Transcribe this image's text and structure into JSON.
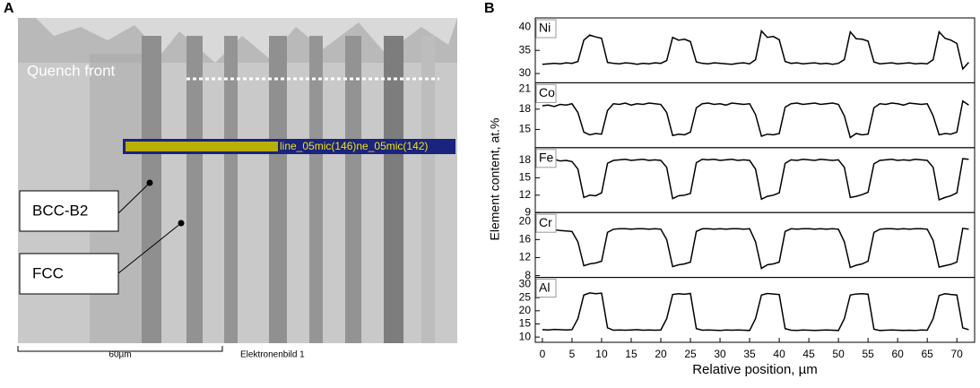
{
  "figure": {
    "panel_a_label": "A",
    "panel_b_label": "B",
    "ylabel": "Element content, at.%"
  },
  "micrograph": {
    "quench_front": "Quench front",
    "line_label": "line_05mic(146)ne_05mic(142)",
    "phase_1": "BCC-B2",
    "phase_2": "FCC",
    "scale_bar": "60µm",
    "image_label": "Elektronenbild  1"
  },
  "chart_data": [
    {
      "type": "line",
      "series": [
        {
          "name": "Ni",
          "color": "#000000",
          "values": [
            32,
            32.1,
            32.2,
            32.1,
            32.3,
            32.2,
            32.6,
            37.2,
            38.3,
            37.9,
            37.6,
            32.4,
            32.2,
            32.1,
            32.3,
            32.2,
            32.0,
            32.2,
            32.1,
            32.3,
            32.2,
            32.8,
            37.8,
            37.2,
            37.4,
            36.9,
            32.5,
            32.2,
            32.1,
            32.3,
            32.2,
            32.1,
            32.0,
            32.2,
            32.3,
            32.1,
            33,
            39.2,
            37.8,
            38.0,
            37.3,
            32.6,
            32.2,
            32.3,
            32.1,
            32.2,
            32.3,
            32.1,
            32.2,
            32.0,
            32.2,
            33,
            39,
            37.5,
            37.4,
            37,
            32.5,
            32.1,
            32.2,
            32.3,
            32.1,
            32.2,
            32.3,
            32.1,
            32.2,
            32.1,
            33,
            39,
            37.6,
            37.2,
            36.5,
            31,
            32.4
          ]
        }
      ],
      "x": [
        0,
        1,
        2,
        3,
        4,
        5,
        6,
        7,
        8,
        9,
        10,
        11,
        12,
        13,
        14,
        15,
        16,
        17,
        18,
        19,
        20,
        21,
        22,
        23,
        24,
        25,
        26,
        27,
        28,
        29,
        30,
        31,
        32,
        33,
        34,
        35,
        36,
        37,
        38,
        39,
        40,
        41,
        42,
        43,
        44,
        45,
        46,
        47,
        48,
        49,
        50,
        51,
        52,
        53,
        54,
        55,
        56,
        57,
        58,
        59,
        60,
        61,
        62,
        63,
        64,
        65,
        66,
        67,
        68,
        69,
        70,
        71,
        72
      ],
      "xlim": [
        -1.2,
        73
      ],
      "ylim": [
        28,
        42
      ],
      "yticks": [
        30,
        35,
        40
      ]
    },
    {
      "type": "line",
      "series": [
        {
          "name": "Co",
          "color": "#000000",
          "values": [
            18.5,
            18.6,
            18.4,
            18.7,
            18.6,
            18.8,
            17.5,
            14.6,
            14.2,
            14.4,
            14.3,
            17.8,
            18.8,
            18.7,
            18.9,
            18.6,
            18.8,
            18.7,
            18.9,
            18.8,
            18.7,
            17.5,
            14.1,
            14.3,
            14.2,
            14.6,
            18.2,
            18.8,
            18.9,
            18.7,
            18.8,
            18.6,
            18.9,
            18.8,
            18.7,
            18.8,
            17.2,
            14.0,
            14.3,
            14.2,
            14.4,
            18.3,
            18.8,
            18.9,
            18.7,
            18.8,
            18.9,
            18.7,
            18.8,
            18.9,
            18.7,
            17,
            13.8,
            14.4,
            14.2,
            14.3,
            18.2,
            18.8,
            18.7,
            18.9,
            18.8,
            18.6,
            18.9,
            18.8,
            18.7,
            18.8,
            17,
            14.2,
            14.4,
            14.3,
            14.6,
            19.2,
            18.6
          ]
        }
      ],
      "x": [
        0,
        1,
        2,
        3,
        4,
        5,
        6,
        7,
        8,
        9,
        10,
        11,
        12,
        13,
        14,
        15,
        16,
        17,
        18,
        19,
        20,
        21,
        22,
        23,
        24,
        25,
        26,
        27,
        28,
        29,
        30,
        31,
        32,
        33,
        34,
        35,
        36,
        37,
        38,
        39,
        40,
        41,
        42,
        43,
        44,
        45,
        46,
        47,
        48,
        49,
        50,
        51,
        52,
        53,
        54,
        55,
        56,
        57,
        58,
        59,
        60,
        61,
        62,
        63,
        64,
        65,
        66,
        67,
        68,
        69,
        70,
        71,
        72
      ],
      "xlim": [
        -1.2,
        73
      ],
      "ylim": [
        12.3,
        21.9
      ],
      "yticks": [
        15,
        18,
        21
      ]
    },
    {
      "type": "line",
      "series": [
        {
          "name": "Fe",
          "color": "#000000",
          "values": [
            18.1,
            18.0,
            18.2,
            17.9,
            18.0,
            17.8,
            16.5,
            11.6,
            12.0,
            11.9,
            12.4,
            17.5,
            18.0,
            18.1,
            18.2,
            18.0,
            18.1,
            18.2,
            18.0,
            18.1,
            18.0,
            16.8,
            11.4,
            11.9,
            12.0,
            12.3,
            17.6,
            18.2,
            18.1,
            18.2,
            18.0,
            18.1,
            18.2,
            18.0,
            18.1,
            18.0,
            16.5,
            11.3,
            11.8,
            12.0,
            12.4,
            17.5,
            18.1,
            18.0,
            18.2,
            18.1,
            18.0,
            18.2,
            18.1,
            18.0,
            18.1,
            16.8,
            11.6,
            11.8,
            12.1,
            12.5,
            17.4,
            18.0,
            18.1,
            18.2,
            18.0,
            18.1,
            18.0,
            18.2,
            18.1,
            18.0,
            16.8,
            11.2,
            11.6,
            11.9,
            12.4,
            18.3,
            18.2
          ]
        }
      ],
      "x": [
        0,
        1,
        2,
        3,
        4,
        5,
        6,
        7,
        8,
        9,
        10,
        11,
        12,
        13,
        14,
        15,
        16,
        17,
        18,
        19,
        20,
        21,
        22,
        23,
        24,
        25,
        26,
        27,
        28,
        29,
        30,
        31,
        32,
        33,
        34,
        35,
        36,
        37,
        38,
        39,
        40,
        41,
        42,
        43,
        44,
        45,
        46,
        47,
        48,
        49,
        50,
        51,
        52,
        53,
        54,
        55,
        56,
        57,
        58,
        59,
        60,
        61,
        62,
        63,
        64,
        65,
        66,
        67,
        68,
        69,
        70,
        71,
        72
      ],
      "xlim": [
        -1.2,
        73
      ],
      "ylim": [
        9,
        20.2
      ],
      "yticks": [
        9,
        12,
        15,
        18
      ]
    },
    {
      "type": "line",
      "series": [
        {
          "name": "Cr",
          "color": "#000000",
          "values": [
            17.9,
            18.0,
            18.2,
            18.0,
            17.9,
            17.8,
            15.5,
            10.2,
            10.6,
            10.8,
            11.2,
            17.6,
            18.3,
            18.4,
            18.4,
            18.3,
            18.4,
            18.4,
            18.3,
            18.4,
            18.3,
            16,
            10.0,
            10.4,
            10.6,
            11.0,
            17.8,
            18.4,
            18.4,
            18.3,
            18.4,
            18.3,
            18.4,
            18.4,
            18.3,
            18.4,
            15.5,
            9.6,
            10.4,
            10.6,
            11.0,
            17.8,
            18.4,
            18.3,
            18.4,
            18.4,
            18.3,
            18.4,
            18.3,
            18.4,
            18.3,
            15.5,
            9.8,
            10.3,
            10.6,
            11.2,
            17.6,
            18.3,
            18.4,
            18.4,
            18.3,
            18.4,
            18.3,
            18.4,
            18.4,
            18.3,
            15.8,
            9.9,
            10.2,
            10.5,
            11.0,
            18.5,
            18.3
          ]
        }
      ],
      "x": [
        0,
        1,
        2,
        3,
        4,
        5,
        6,
        7,
        8,
        9,
        10,
        11,
        12,
        13,
        14,
        15,
        16,
        17,
        18,
        19,
        20,
        21,
        22,
        23,
        24,
        25,
        26,
        27,
        28,
        29,
        30,
        31,
        32,
        33,
        34,
        35,
        36,
        37,
        38,
        39,
        40,
        41,
        42,
        43,
        44,
        45,
        46,
        47,
        48,
        49,
        50,
        51,
        52,
        53,
        54,
        55,
        56,
        57,
        58,
        59,
        60,
        61,
        62,
        63,
        64,
        65,
        66,
        67,
        68,
        69,
        70,
        71,
        72
      ],
      "xlim": [
        -1.2,
        73
      ],
      "ylim": [
        7.6,
        22
      ],
      "yticks": [
        8,
        12,
        16,
        20
      ]
    },
    {
      "type": "line",
      "series": [
        {
          "name": "Al",
          "color": "#000000",
          "values": [
            12.8,
            12.7,
            12.9,
            12.8,
            12.7,
            12.8,
            17,
            26.0,
            26.8,
            26.5,
            26.7,
            13.5,
            12.6,
            12.7,
            12.6,
            12.7,
            12.8,
            12.6,
            12.7,
            12.6,
            12.7,
            17,
            26.2,
            26.5,
            26.3,
            26.6,
            13.2,
            12.6,
            12.7,
            12.6,
            12.5,
            12.7,
            12.6,
            12.7,
            12.6,
            12.5,
            17,
            26.0,
            26.6,
            26.4,
            26.2,
            13.2,
            12.6,
            12.5,
            12.7,
            12.6,
            12.5,
            12.6,
            12.7,
            12.6,
            12.5,
            17,
            26.0,
            26.4,
            26.5,
            26.3,
            13.0,
            12.5,
            12.6,
            12.7,
            12.6,
            12.5,
            12.6,
            12.5,
            12.7,
            12.6,
            17,
            25.8,
            26.5,
            26.2,
            26.0,
            13.5,
            12.8
          ]
        }
      ],
      "x": [
        0,
        1,
        2,
        3,
        4,
        5,
        6,
        7,
        8,
        9,
        10,
        11,
        12,
        13,
        14,
        15,
        16,
        17,
        18,
        19,
        20,
        21,
        22,
        23,
        24,
        25,
        26,
        27,
        28,
        29,
        30,
        31,
        32,
        33,
        34,
        35,
        36,
        37,
        38,
        39,
        40,
        41,
        42,
        43,
        44,
        45,
        46,
        47,
        48,
        49,
        50,
        51,
        52,
        53,
        54,
        55,
        56,
        57,
        58,
        59,
        60,
        61,
        62,
        63,
        64,
        65,
        66,
        67,
        68,
        69,
        70,
        71,
        72
      ],
      "xlim": [
        -1.2,
        73
      ],
      "ylim": [
        8,
        32.7
      ],
      "yticks": [
        10,
        15,
        20,
        25,
        30
      ],
      "xlabel": "Relative position, µm",
      "xticks": [
        0,
        5,
        10,
        15,
        20,
        25,
        30,
        35,
        40,
        45,
        50,
        55,
        60,
        65,
        70
      ]
    }
  ]
}
